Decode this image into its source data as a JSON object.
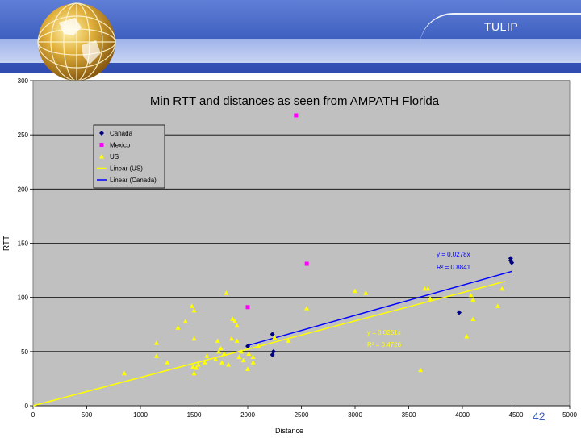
{
  "header": {
    "brand": "TULIP"
  },
  "colors": {
    "header_blue": "#3f5fc0",
    "plot_bg": "#c0c0c0",
    "canada": "#000080",
    "mexico": "#ff00ff",
    "us": "#ffff00",
    "linear_us": "#ffff00",
    "linear_canada": "#0000ff"
  },
  "icons": {
    "logo": "globe-icon"
  },
  "page_number": "42",
  "chart_data": {
    "type": "scatter",
    "title": "Min RTT and distances as seen from AMPATH Florida",
    "xlabel": "Distance",
    "ylabel": "RTT",
    "xlim": [
      0,
      5000
    ],
    "ylim": [
      0,
      300
    ],
    "x_ticks": [
      "0",
      "500",
      "1000",
      "1500",
      "2000",
      "2500",
      "3000",
      "3500",
      "4000",
      "4500",
      "5000"
    ],
    "y_ticks": [
      "0",
      "50",
      "100",
      "150",
      "200",
      "250",
      "300"
    ],
    "grid": "horizontal",
    "legend_position": "top-left",
    "legend": [
      "Canada",
      "Mexico",
      "US",
      "Linear (US)",
      "Linear (Canada)"
    ],
    "series": [
      {
        "name": "Canada",
        "marker": "diamond",
        "points": [
          [
            2000,
            55
          ],
          [
            2230,
            66
          ],
          [
            2240,
            50
          ],
          [
            2230,
            47
          ],
          [
            3970,
            86
          ],
          [
            4450,
            134
          ],
          [
            4450,
            136
          ],
          [
            4460,
            132
          ]
        ]
      },
      {
        "name": "Mexico",
        "marker": "square",
        "points": [
          [
            2450,
            268
          ],
          [
            2550,
            131
          ],
          [
            2000,
            91
          ]
        ]
      },
      {
        "name": "US",
        "marker": "triangle",
        "points": [
          [
            850,
            30
          ],
          [
            1150,
            46
          ],
          [
            1150,
            58
          ],
          [
            1250,
            40
          ],
          [
            1350,
            72
          ],
          [
            1420,
            78
          ],
          [
            1480,
            92
          ],
          [
            1500,
            88
          ],
          [
            1500,
            62
          ],
          [
            1490,
            36
          ],
          [
            1500,
            30
          ],
          [
            1520,
            35
          ],
          [
            1540,
            38
          ],
          [
            1600,
            40
          ],
          [
            1620,
            46
          ],
          [
            1700,
            43
          ],
          [
            1720,
            60
          ],
          [
            1730,
            50
          ],
          [
            1750,
            53
          ],
          [
            1760,
            40
          ],
          [
            1780,
            48
          ],
          [
            1800,
            104
          ],
          [
            1820,
            38
          ],
          [
            1850,
            62
          ],
          [
            1860,
            80
          ],
          [
            1880,
            78
          ],
          [
            1900,
            74
          ],
          [
            1900,
            60
          ],
          [
            1920,
            45
          ],
          [
            1940,
            50
          ],
          [
            1960,
            42
          ],
          [
            2000,
            34
          ],
          [
            2010,
            48
          ],
          [
            2050,
            45
          ],
          [
            2050,
            40
          ],
          [
            2100,
            55
          ],
          [
            2250,
            63
          ],
          [
            2380,
            60
          ],
          [
            2550,
            90
          ],
          [
            3000,
            106
          ],
          [
            3100,
            104
          ],
          [
            3610,
            33
          ],
          [
            3650,
            108
          ],
          [
            3680,
            108
          ],
          [
            3700,
            99
          ],
          [
            4040,
            64
          ],
          [
            4080,
            102
          ],
          [
            4100,
            98
          ],
          [
            4100,
            80
          ],
          [
            4330,
            92
          ],
          [
            4370,
            108
          ]
        ]
      }
    ],
    "trendlines": [
      {
        "name": "Linear (US)",
        "slope": 0.0261,
        "x": [
          0,
          4400
        ],
        "equation": "y = 0.0261x",
        "r2": "R² = 0.4726"
      },
      {
        "name": "Linear (Canada)",
        "slope": 0.0278,
        "x": [
          2000,
          4460
        ],
        "equation": "y = 0.0278x",
        "r2": "R² = 0.8841"
      }
    ]
  }
}
